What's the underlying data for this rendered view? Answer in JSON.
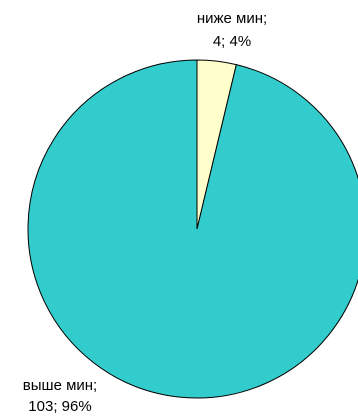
{
  "chart_data": {
    "type": "pie",
    "start_angle_deg": 0,
    "direction": "clockwise",
    "slices": [
      {
        "category": "ниже мин",
        "value": 4,
        "percent": "4%",
        "label_line1": "ниже мин;",
        "label_line2": "4; 4%",
        "color": "#FFFFCC"
      },
      {
        "category": "выше мин",
        "value": 103,
        "percent": "96%",
        "label_line1": "выше мин;",
        "label_line2": "103; 96%",
        "color": "#33CCCC"
      }
    ],
    "outline_color": "#000000"
  }
}
